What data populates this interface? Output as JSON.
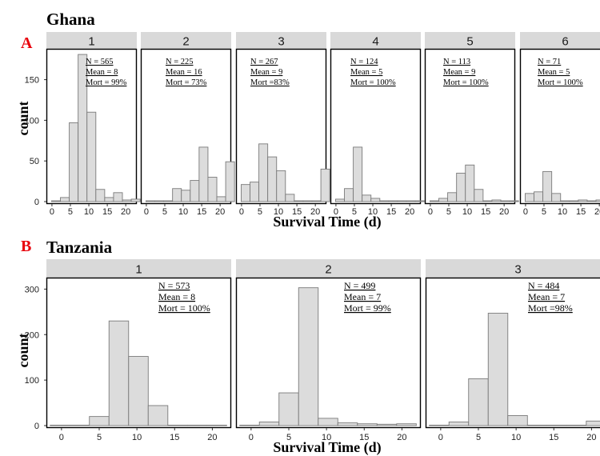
{
  "figure": {
    "panel_a": {
      "letter": "A",
      "title": "Ghana"
    },
    "panel_b": {
      "letter": "B",
      "title": "Tanzania"
    },
    "xlabel": "Survival Time (d)",
    "ylabel": "count",
    "letter_color": "#e8000b",
    "bar_fill": "#dcdcdc",
    "bar_stroke": "#7a7a7a",
    "strip_fill": "#d9d9d9"
  },
  "chart_data": [
    {
      "type": "bar",
      "panel": "A",
      "title": "Ghana",
      "xlabel": "Survival Time (d)",
      "ylabel": "count",
      "xlim": [
        -1.5,
        23
      ],
      "ylim": [
        0,
        185
      ],
      "xticks": [
        0,
        5,
        10,
        15,
        20
      ],
      "yticks": [
        0,
        50,
        100,
        150
      ],
      "bin_width": 2.4,
      "bin_edges": [
        -0.1,
        2.3,
        4.7,
        7.1,
        9.5,
        11.9,
        14.3,
        16.7,
        19.1,
        21.5,
        23.9
      ],
      "facets": [
        {
          "label": "1",
          "stats": [
            "N = 565",
            "Mean = 8",
            "Mort = 99%"
          ],
          "values": [
            1,
            5,
            97,
            181,
            110,
            15,
            5,
            11,
            2,
            3
          ]
        },
        {
          "label": "2",
          "stats": [
            "N = 225",
            "Mean = 16",
            "Mort = 73%"
          ],
          "values": [
            1,
            1,
            1,
            16,
            14,
            26,
            67,
            30,
            6,
            49
          ]
        },
        {
          "label": "3",
          "stats": [
            "N = 267",
            "Mean = 9",
            "Mort =83%"
          ],
          "values": [
            21,
            24,
            71,
            55,
            38,
            9,
            1,
            1,
            1,
            40
          ]
        },
        {
          "label": "4",
          "stats": [
            "N = 124",
            "Mean = 5",
            "Mort = 100%"
          ],
          "values": [
            3,
            16,
            67,
            8,
            4,
            1,
            1,
            1,
            1,
            1
          ]
        },
        {
          "label": "5",
          "stats": [
            "N = 113",
            "Mean = 9",
            "Mort = 100%"
          ],
          "values": [
            1,
            4,
            11,
            35,
            45,
            15,
            1,
            2,
            1,
            1
          ]
        },
        {
          "label": "6",
          "stats": [
            "N = 71",
            "Mean = 5",
            "Mort = 100%"
          ],
          "values": [
            10,
            12,
            37,
            10,
            1,
            1,
            2,
            1,
            2,
            1
          ]
        }
      ]
    },
    {
      "type": "bar",
      "panel": "B",
      "title": "Tanzania",
      "xlabel": "Survival Time (d)",
      "ylabel": "count",
      "xlim": [
        -2,
        22.5
      ],
      "ylim": [
        0,
        320
      ],
      "xticks": [
        0,
        5,
        10,
        15,
        20
      ],
      "yticks": [
        0,
        100,
        200,
        300
      ],
      "bin_width": 2.6,
      "bin_edges": [
        -1.5,
        1.1,
        3.7,
        6.3,
        8.9,
        11.5,
        14.1,
        16.7,
        19.3,
        21.9
      ],
      "facets": [
        {
          "label": "1",
          "stats": [
            "N = 573",
            "Mean = 8",
            "Mort = 100%"
          ],
          "values": [
            1,
            1,
            20,
            230,
            152,
            44,
            1,
            1,
            1
          ]
        },
        {
          "label": "2",
          "stats": [
            "N = 499",
            "Mean = 7",
            "Mort = 99%"
          ],
          "values": [
            1,
            8,
            72,
            303,
            16,
            6,
            4,
            3,
            4
          ]
        },
        {
          "label": "3",
          "stats": [
            "N = 484",
            "Mean = 7",
            "Mort =98%"
          ],
          "values": [
            1,
            8,
            103,
            247,
            22,
            1,
            1,
            1,
            10
          ]
        }
      ]
    }
  ]
}
